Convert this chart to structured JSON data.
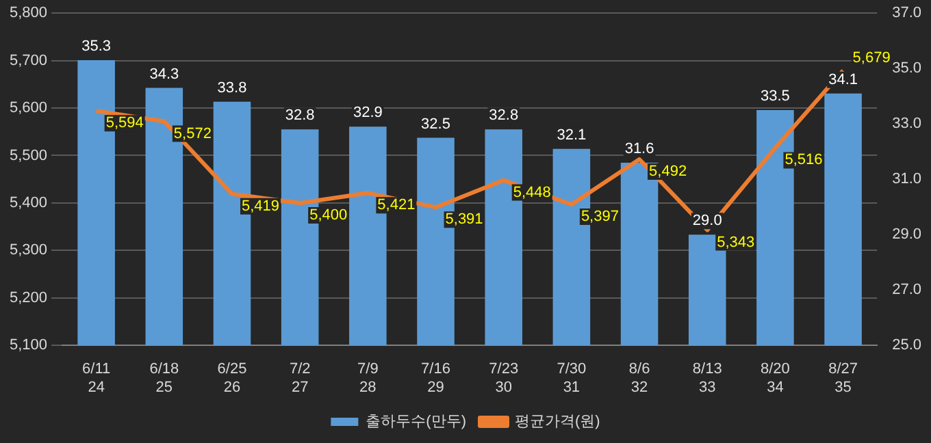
{
  "chart_data": {
    "type": "bar",
    "categories": [
      "6/11\n24",
      "6/18\n25",
      "6/25\n26",
      "7/2\n27",
      "7/9\n28",
      "7/16\n29",
      "7/23\n30",
      "7/30\n31",
      "8/6\n32",
      "8/13\n33",
      "8/20\n34",
      "8/27\n35"
    ],
    "series": [
      {
        "name": "출하두수(만두)",
        "axis": "y2",
        "color": "#5b9bd5",
        "values": [
          35.3,
          34.3,
          33.8,
          32.8,
          32.9,
          32.5,
          32.8,
          32.1,
          31.6,
          29.0,
          33.5,
          34.1
        ],
        "value_labels": [
          "35.3",
          "34.3",
          "33.8",
          "32.8",
          "32.9",
          "32.5",
          "32.8",
          "32.1",
          "31.6",
          "29.0",
          "33.5",
          "34.1"
        ]
      },
      {
        "name": "평균가격(원)",
        "type": "line",
        "axis": "y",
        "color": "#ed7d31",
        "values": [
          5594,
          5572,
          5419,
          5400,
          5421,
          5391,
          5448,
          5397,
          5492,
          5343,
          5516,
          5679
        ],
        "value_labels": [
          "5,594",
          "5,572",
          "5,419",
          "5,400",
          "5,421",
          "5,391",
          "5,448",
          "5,397",
          "5,492",
          "5,343",
          "5,516",
          "5,679"
        ]
      }
    ],
    "ylim": [
      5100,
      5800
    ],
    "yticks": [
      {
        "value": 5100,
        "label": "5,100"
      },
      {
        "value": 5200,
        "label": "5,200"
      },
      {
        "value": 5300,
        "label": "5,300"
      },
      {
        "value": 5400,
        "label": "5,400"
      },
      {
        "value": 5500,
        "label": "5,500"
      },
      {
        "value": 5600,
        "label": "5,600"
      },
      {
        "value": 5700,
        "label": "5,700"
      },
      {
        "value": 5800,
        "label": "5,800"
      }
    ],
    "y2lim": [
      25,
      37
    ],
    "y2ticks": [
      {
        "value": 25,
        "label": "25.0"
      },
      {
        "value": 27,
        "label": "27.0"
      },
      {
        "value": 29,
        "label": "29.0"
      },
      {
        "value": 31,
        "label": "31.0"
      },
      {
        "value": 33,
        "label": "33.0"
      },
      {
        "value": 35,
        "label": "35.0"
      },
      {
        "value": 37,
        "label": "37.0"
      }
    ],
    "grid": "y",
    "legend": "bottom",
    "marker": "none",
    "line_style": "solid"
  }
}
